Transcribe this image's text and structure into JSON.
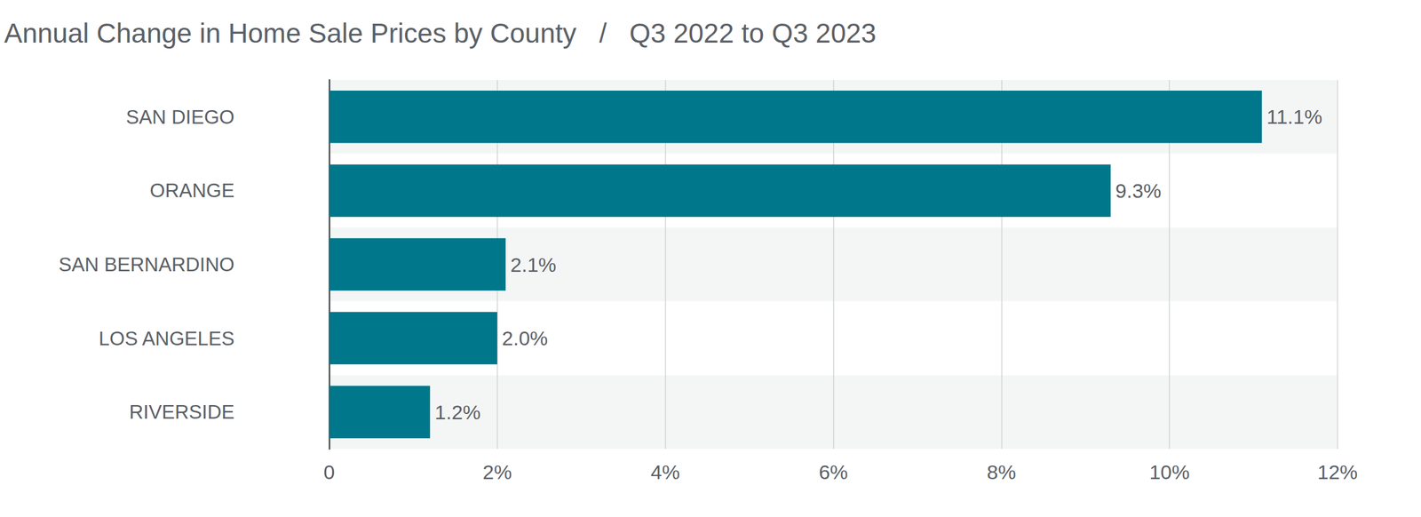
{
  "chart_data": {
    "type": "bar",
    "title": "Annual Change in Home Sale Prices by County   /   Q3 2022 to Q3 2023",
    "orientation": "horizontal",
    "categories": [
      "SAN DIEGO",
      "ORANGE",
      "SAN BERNARDINO",
      "LOS ANGELES",
      "RIVERSIDE"
    ],
    "values": [
      11.1,
      9.3,
      2.1,
      2.0,
      1.2
    ],
    "value_labels": [
      "11.1%",
      "9.3%",
      "2.1%",
      "2.0%",
      "1.2%"
    ],
    "color": "#00778a",
    "xlim": [
      0,
      12
    ],
    "xticks": [
      0,
      {
        "value": 2,
        "label": "2%"
      },
      {
        "value": 4,
        "label": "4%"
      },
      {
        "value": 6,
        "label": "6%"
      },
      {
        "value": 8,
        "label": "8%"
      },
      {
        "value": 10,
        "label": "10%"
      },
      {
        "value": 12,
        "label": "12%"
      }
    ],
    "grid": true,
    "data_labels": true
  }
}
